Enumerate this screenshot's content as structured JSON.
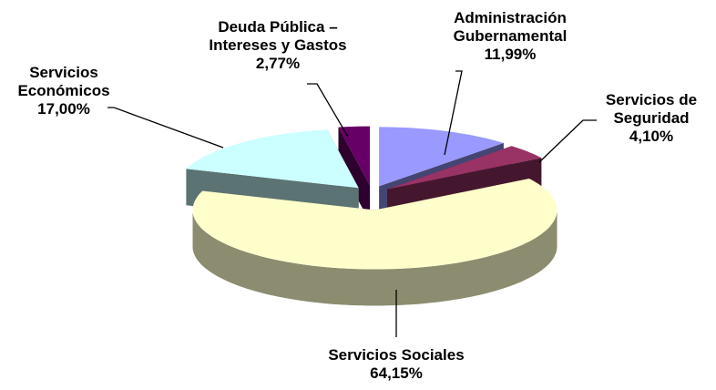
{
  "chart_data": {
    "type": "pie",
    "categories": [
      "Administración Gubernamental",
      "Servicios de Seguridad",
      "Servicios Sociales",
      "Servicios Económicos",
      "Deuda Pública – Intereses y Gastos"
    ],
    "values": [
      11.99,
      4.1,
      64.15,
      17.0,
      2.77
    ],
    "value_labels": [
      "11,99%",
      "4,10%",
      "64,15%",
      "17,00%",
      "2,77%"
    ],
    "colors": [
      "#9999ff",
      "#993366",
      "#ffffcc",
      "#ccffff",
      "#660066"
    ]
  }
}
